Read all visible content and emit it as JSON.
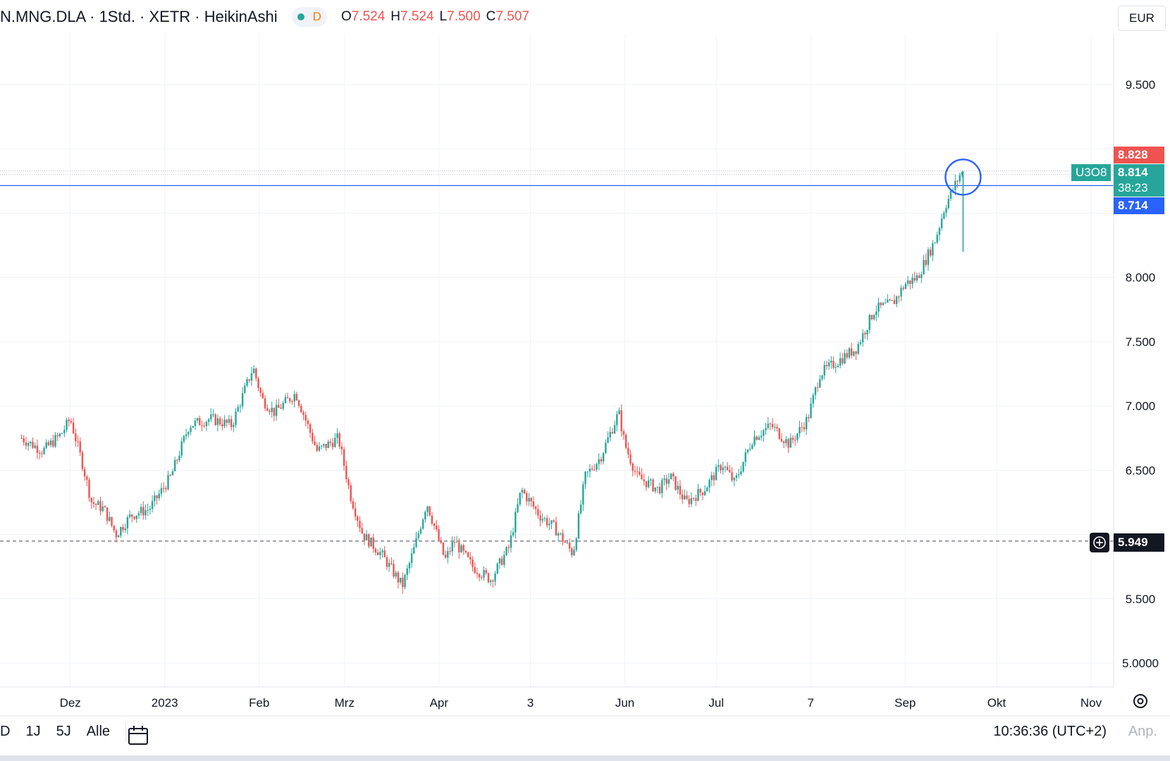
{
  "header": {
    "symbol_line": "N.MNG.DLA · 1Std. · XETR · HeikinAshi",
    "badge_d": "D",
    "ohlc": [
      {
        "key": "O",
        "value": "7.524"
      },
      {
        "key": "H",
        "value": "7.524"
      },
      {
        "key": "L",
        "value": "7.500"
      },
      {
        "key": "C",
        "value": "7.507"
      }
    ]
  },
  "currency": "EUR",
  "price_labels": {
    "high_label": "8.828",
    "last_price": "8.814",
    "countdown": "38:23",
    "line_label": "8.714",
    "symbol_tag": "U3O8",
    "crosshair_price": "5.949"
  },
  "colors": {
    "up": "#26a69a",
    "down": "#ef5350",
    "line": "#2962ff",
    "circle": "#2962ff"
  },
  "bottom_bar": {
    "ranges": [
      "D",
      "1J",
      "5J",
      "Alle"
    ],
    "time": "10:36:36 (UTC+2)",
    "adjust": "Anp."
  },
  "chart_data": {
    "type": "line",
    "title": "",
    "xlabel": "",
    "ylabel": "",
    "ylim": [
      4.92,
      10.1
    ],
    "y_ticks": [
      "5.0000",
      "5.500",
      "6.500",
      "7.000",
      "7.500",
      "8.000",
      "9.500"
    ],
    "x_ticks": [
      "Dez",
      "2023",
      "Feb",
      "Mrz",
      "Apr",
      "3",
      "Jun",
      "Jul",
      "7",
      "Sep",
      "Okt",
      "Nov"
    ],
    "horizontal_lines": [
      {
        "value": 8.714,
        "style": "solid"
      },
      {
        "value": 5.949,
        "style": "dashed"
      }
    ],
    "series": [
      {
        "x": [
          "2022-11-15",
          "2022-11-22",
          "2022-11-28",
          "2022-12-01",
          "2022-12-05",
          "2022-12-08",
          "2022-12-12",
          "2022-12-16",
          "2022-12-21",
          "2022-12-27",
          "2023-01-03",
          "2023-01-09",
          "2023-01-16",
          "2023-01-23",
          "2023-01-30",
          "2023-02-02",
          "2023-02-06",
          "2023-02-13",
          "2023-02-20",
          "2023-02-27",
          "2023-03-03",
          "2023-03-07",
          "2023-03-13",
          "2023-03-20",
          "2023-03-24",
          "2023-03-28",
          "2023-04-03",
          "2023-04-06",
          "2023-04-12",
          "2023-04-18",
          "2023-04-24",
          "2023-04-28",
          "2023-05-04",
          "2023-05-09",
          "2023-05-15",
          "2023-05-19",
          "2023-05-24",
          "2023-05-30",
          "2023-06-01",
          "2023-06-05",
          "2023-06-12",
          "2023-06-16",
          "2023-06-21",
          "2023-06-27",
          "2023-07-03",
          "2023-07-07",
          "2023-07-13",
          "2023-07-19",
          "2023-07-25",
          "2023-07-31",
          "2023-08-04",
          "2023-08-10",
          "2023-08-16",
          "2023-08-22",
          "2023-08-28",
          "2023-09-01",
          "2023-09-05",
          "2023-09-11",
          "2023-09-14",
          "2023-09-18",
          "2023-09-19",
          "2023-09-20"
        ],
        "y": [
          6.75,
          6.65,
          6.78,
          6.9,
          6.55,
          6.25,
          6.2,
          6.0,
          6.15,
          6.2,
          6.45,
          6.85,
          6.9,
          6.85,
          7.3,
          7.05,
          6.95,
          7.1,
          6.65,
          6.75,
          6.3,
          6.0,
          5.85,
          5.6,
          5.9,
          6.25,
          5.8,
          5.95,
          5.75,
          5.65,
          5.9,
          6.35,
          6.15,
          6.05,
          5.85,
          6.45,
          6.6,
          6.95,
          6.7,
          6.45,
          6.35,
          6.45,
          6.25,
          6.35,
          6.55,
          6.4,
          6.75,
          6.85,
          6.7,
          6.9,
          7.25,
          7.35,
          7.45,
          7.75,
          7.8,
          7.95,
          8.0,
          8.3,
          8.55,
          8.75,
          8.8,
          8.814
        ]
      }
    ]
  }
}
